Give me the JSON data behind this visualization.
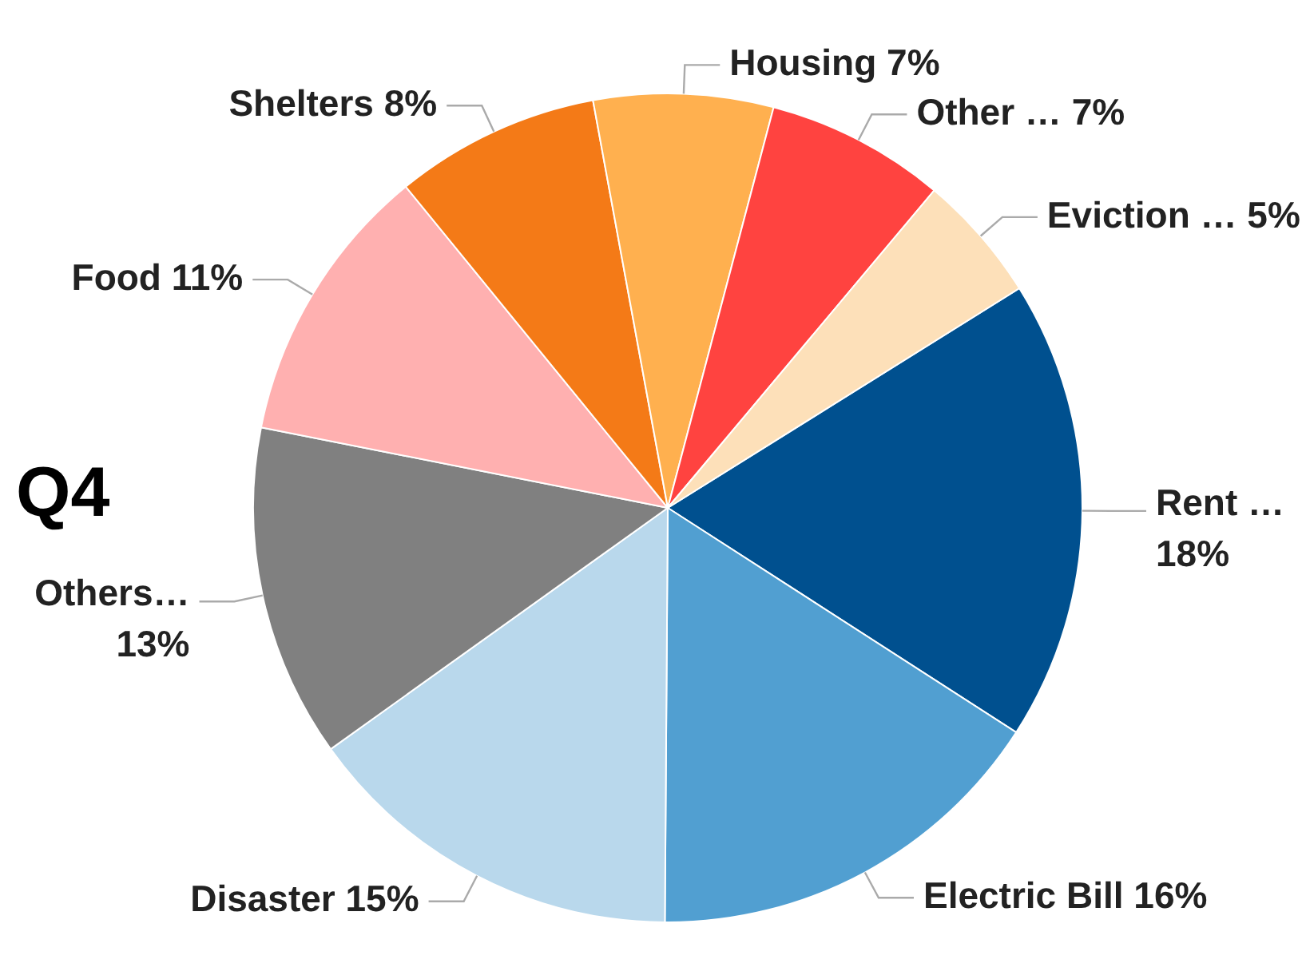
{
  "chart_data": {
    "type": "pie",
    "title": "Q4",
    "categories": [
      "Rent …",
      "Electric Bill",
      "Disaster",
      "Others…",
      "Food",
      "Shelters",
      "Housing",
      "Other …",
      "Eviction …"
    ],
    "values": [
      18,
      16,
      15,
      13,
      11,
      8,
      7,
      7,
      5
    ],
    "colors": [
      "#00508f",
      "#519fd1",
      "#b9d8ec",
      "#808080",
      "#ffb0b0",
      "#f47a17",
      "#ffb04f",
      "#ff4340",
      "#fde0b9"
    ],
    "value_labels": [
      "18%",
      "16%",
      "15%",
      "13%",
      "11%",
      "8%",
      "7%",
      "7%",
      "5%"
    ],
    "legend": false
  }
}
